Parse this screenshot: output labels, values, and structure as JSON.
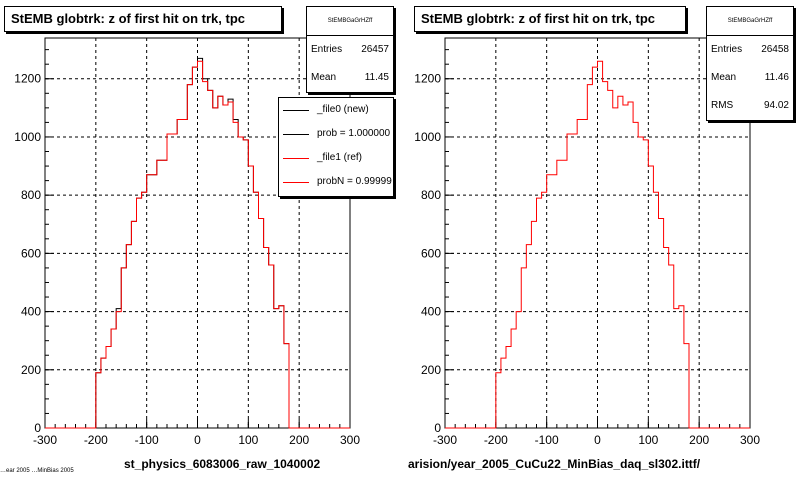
{
  "pads": [
    {
      "title": "StEMB globtrk: z of first hit on trk, tpc",
      "xaxis_title": "st_physics_6083006_raw_1040002",
      "stats": {
        "name": "StEMBGaGrHZff",
        "rows": [
          {
            "label": "Entries",
            "value": "26457"
          },
          {
            "label": "Mean",
            "value": "11.45"
          }
        ]
      },
      "legend": [
        {
          "label": "_file0 (new)",
          "color": "#000000"
        },
        {
          "label": "prob = 1.000000",
          "color": "#000000"
        },
        {
          "label": "_file1 (ref)",
          "color": "#ff0000"
        },
        {
          "label": "probN = 0.99999",
          "color": "#ff0000"
        }
      ]
    },
    {
      "title": "StEMB globtrk: z of first hit on trk, tpc",
      "xaxis_title": "arision/year_2005_CuCu22_MinBias_daq_sl302.ittf/",
      "stats": {
        "name": "StEMBGaGrHZff",
        "rows": [
          {
            "label": "Entries",
            "value": "26458"
          },
          {
            "label": "Mean",
            "value": "11.46"
          },
          {
            "label": "RMS",
            "value": "94.02"
          }
        ]
      },
      "legend": []
    }
  ],
  "corner_note": "…ear 2005 …MinBias 2005",
  "chart_data": [
    {
      "type": "histogram",
      "title": "StEMB globtrk: z of first hit on trk, tpc",
      "xlabel": "st_physics_6083006_raw_1040002",
      "ylabel": "",
      "xlim": [
        -300,
        300
      ],
      "ylim": [
        0,
        1340
      ],
      "xticks": [
        -300,
        -200,
        -100,
        0,
        100,
        200,
        300
      ],
      "yticks": [
        0,
        200,
        400,
        600,
        800,
        1000,
        1200
      ],
      "grid": true,
      "bin_width": 10,
      "series": [
        {
          "name": "_file0 (new)",
          "color": "#000000",
          "bins_x": [
            -200,
            -190,
            -180,
            -170,
            -160,
            -150,
            -140,
            -130,
            -120,
            -110,
            -100,
            -90,
            -80,
            -70,
            -60,
            -50,
            -40,
            -30,
            -20,
            -10,
            0,
            10,
            20,
            30,
            40,
            50,
            60,
            70,
            80,
            90,
            100,
            110,
            120,
            130,
            140,
            150,
            160,
            170,
            180,
            190,
            200
          ],
          "values": [
            190,
            240,
            280,
            340,
            410,
            550,
            630,
            710,
            790,
            810,
            870,
            870,
            920,
            920,
            1010,
            1010,
            1060,
            1060,
            1180,
            1240,
            1270,
            1200,
            1160,
            1100,
            1140,
            1110,
            1130,
            1060,
            1000,
            990,
            900,
            810,
            720,
            620,
            560,
            410,
            420,
            290,
            0,
            0,
            0
          ]
        },
        {
          "name": "_file1 (ref)",
          "color": "#ff0000",
          "bins_x": [
            -200,
            -190,
            -180,
            -170,
            -160,
            -150,
            -140,
            -130,
            -120,
            -110,
            -100,
            -90,
            -80,
            -70,
            -60,
            -50,
            -40,
            -30,
            -20,
            -10,
            0,
            10,
            20,
            30,
            40,
            50,
            60,
            70,
            80,
            90,
            100,
            110,
            120,
            130,
            140,
            150,
            160,
            170,
            180,
            190,
            200
          ],
          "values": [
            190,
            240,
            280,
            340,
            400,
            550,
            630,
            710,
            790,
            810,
            870,
            870,
            920,
            920,
            1010,
            1010,
            1060,
            1060,
            1180,
            1240,
            1260,
            1190,
            1160,
            1100,
            1140,
            1110,
            1120,
            1050,
            1000,
            990,
            900,
            810,
            720,
            620,
            560,
            410,
            420,
            290,
            0,
            0,
            0
          ]
        }
      ]
    },
    {
      "type": "histogram",
      "title": "StEMB globtrk: z of first hit on trk, tpc",
      "xlabel": "arision/year_2005_CuCu22_MinBias_daq_sl302.ittf/",
      "ylabel": "",
      "xlim": [
        -300,
        300
      ],
      "ylim": [
        0,
        1340
      ],
      "xticks": [
        -300,
        -200,
        -100,
        0,
        100,
        200,
        300
      ],
      "yticks": [
        0,
        200,
        400,
        600,
        800,
        1000,
        1200
      ],
      "grid": true,
      "bin_width": 10,
      "series": [
        {
          "name": "_file1 (ref)",
          "color": "#ff0000",
          "bins_x": [
            -200,
            -190,
            -180,
            -170,
            -160,
            -150,
            -140,
            -130,
            -120,
            -110,
            -100,
            -90,
            -80,
            -70,
            -60,
            -50,
            -40,
            -30,
            -20,
            -10,
            0,
            10,
            20,
            30,
            40,
            50,
            60,
            70,
            80,
            90,
            100,
            110,
            120,
            130,
            140,
            150,
            160,
            170,
            180,
            190,
            200
          ],
          "values": [
            190,
            240,
            280,
            340,
            400,
            550,
            630,
            710,
            790,
            810,
            870,
            870,
            920,
            920,
            1010,
            1010,
            1060,
            1060,
            1180,
            1240,
            1260,
            1190,
            1160,
            1100,
            1140,
            1110,
            1120,
            1050,
            1000,
            990,
            900,
            810,
            720,
            620,
            560,
            410,
            420,
            290,
            0,
            0,
            0
          ]
        }
      ]
    }
  ]
}
